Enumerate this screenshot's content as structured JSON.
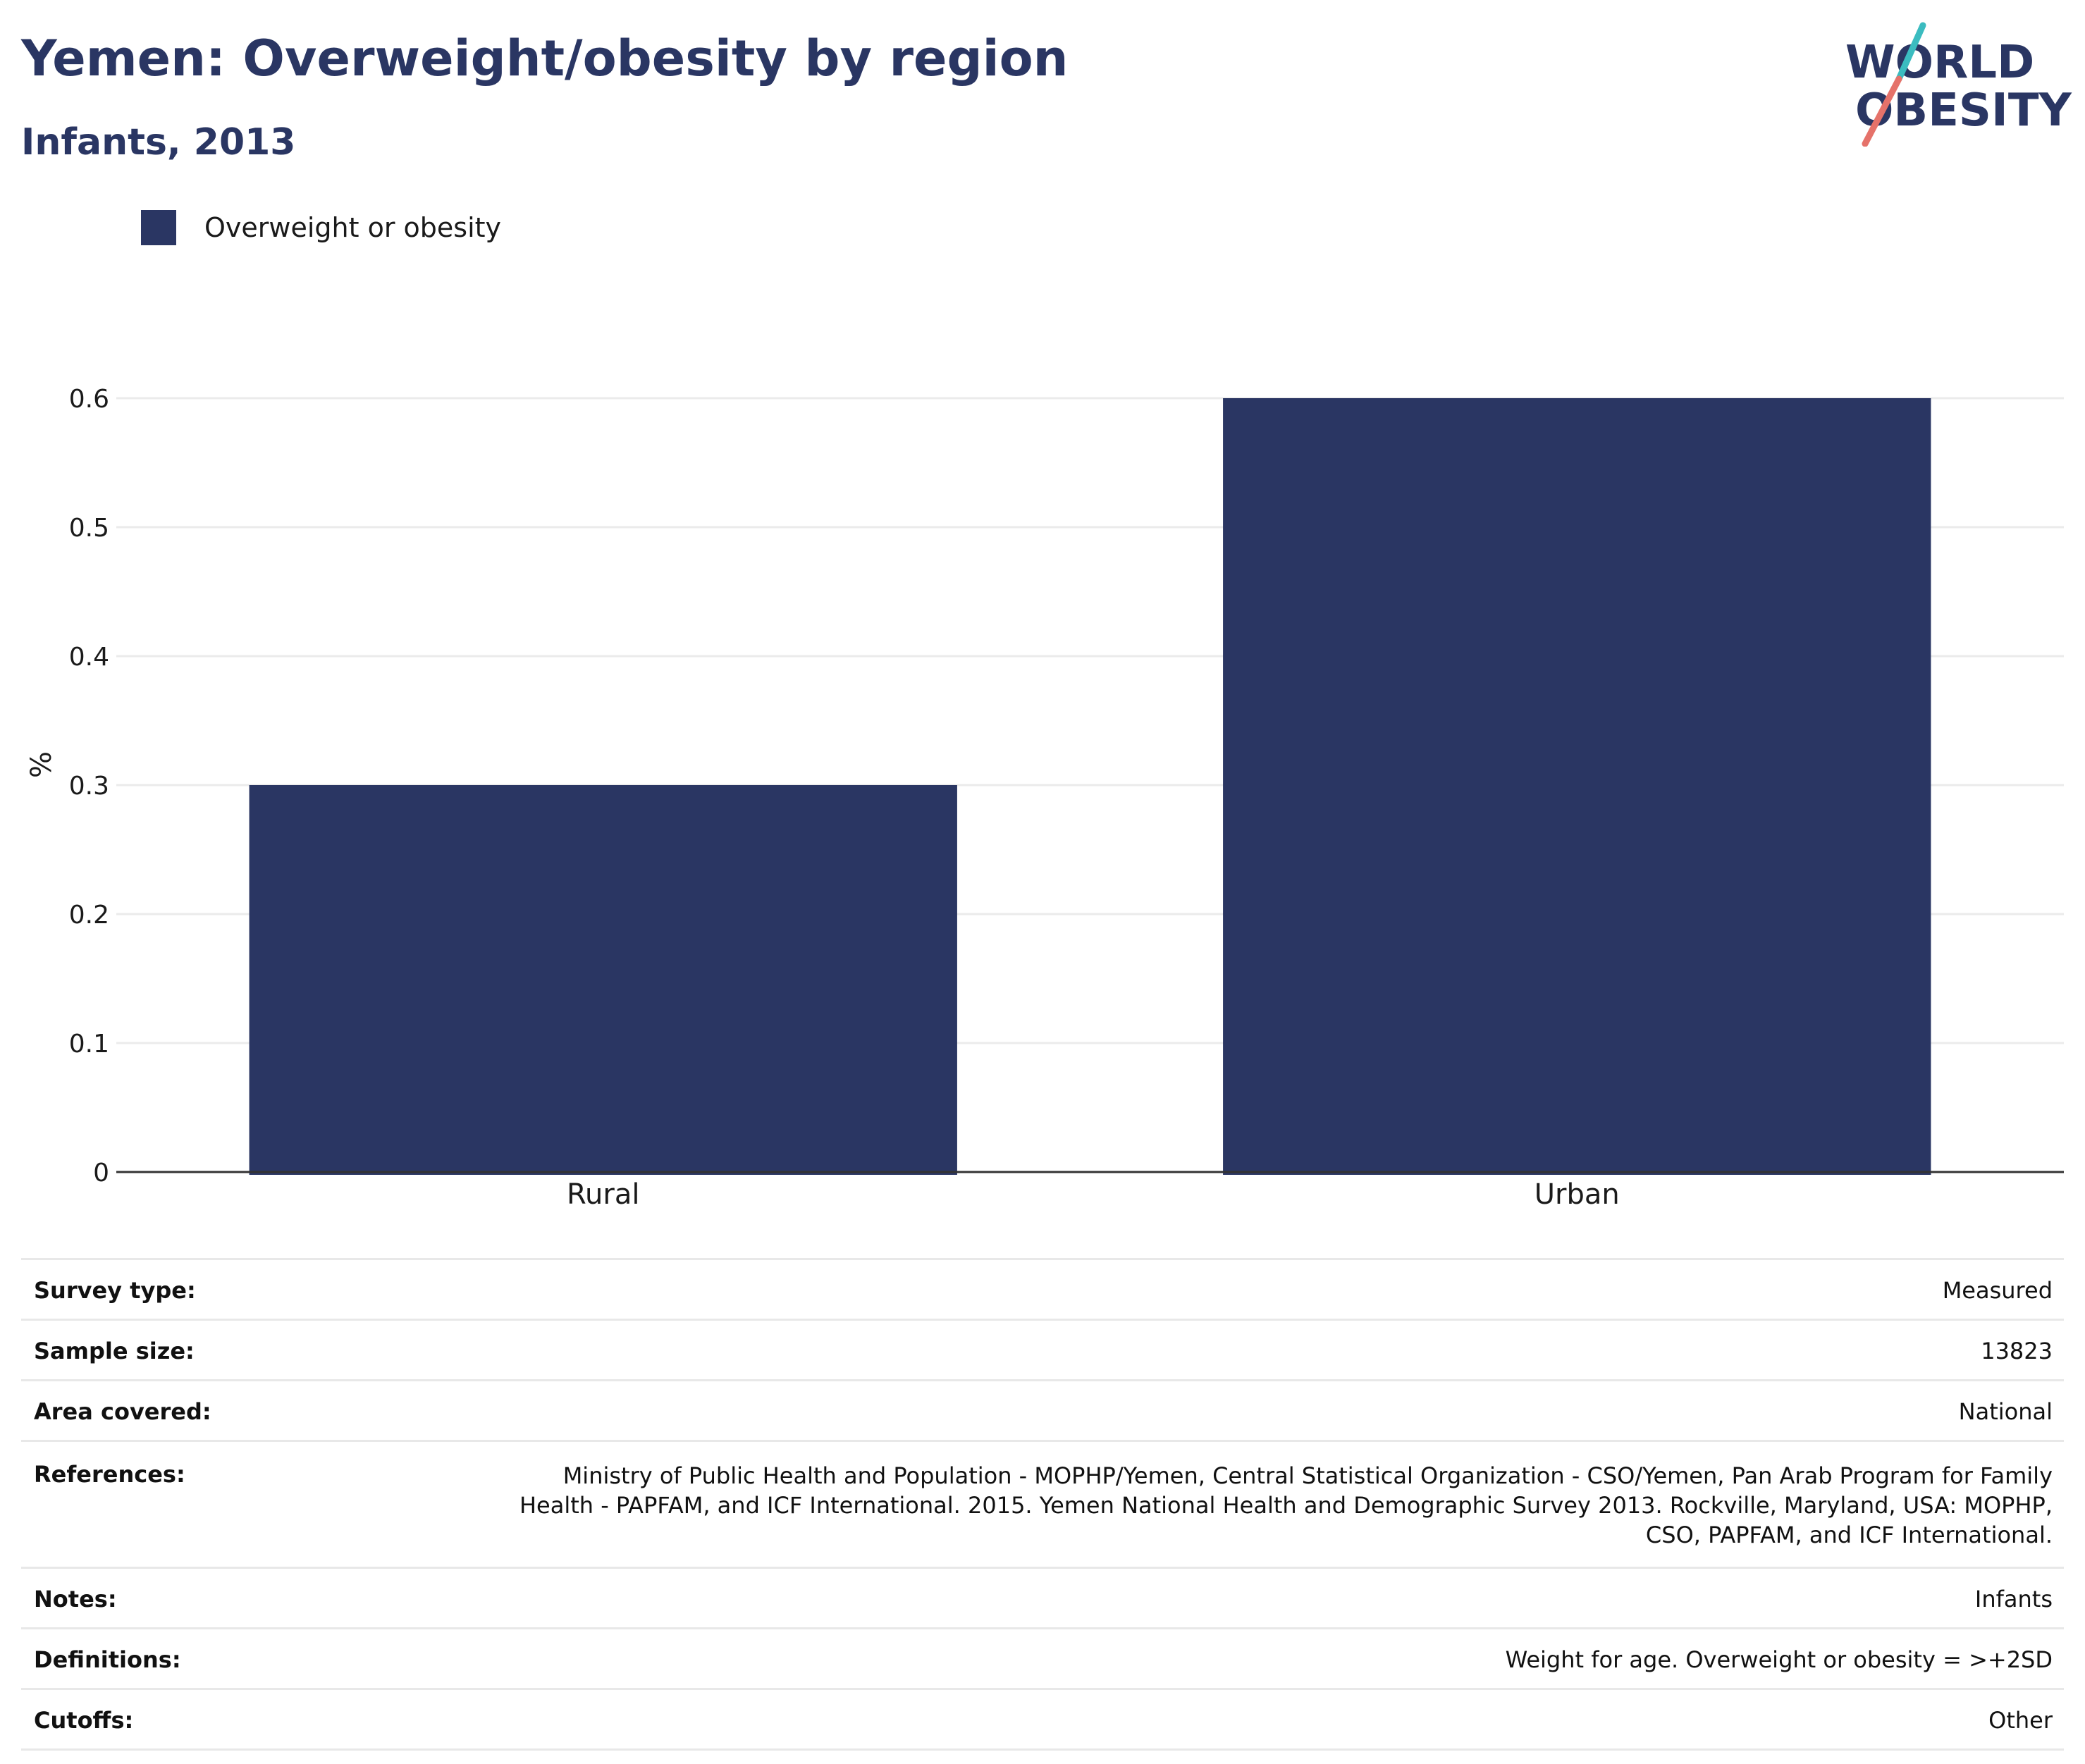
{
  "title": "Yemen: Overweight/obesity by region",
  "subtitle": "Infants, 2013",
  "logo": {
    "line1": "WORLD",
    "line2": "OBESITY"
  },
  "colors": {
    "bar": "#2a3663",
    "title": "#2a3663",
    "logo_teal": "#3bbcc0",
    "logo_coral": "#e5726a",
    "grid": "#ebebeb"
  },
  "legend": {
    "label": "Overweight or obesity"
  },
  "chart_data": {
    "type": "bar",
    "title": "Yemen: Overweight/obesity by region",
    "subtitle": "Infants, 2013",
    "categories": [
      "Rural",
      "Urban"
    ],
    "series": [
      {
        "name": "Overweight or obesity",
        "values": [
          0.3,
          0.6
        ]
      }
    ],
    "xlabel": "",
    "ylabel": "%",
    "ylim": [
      0,
      0.6
    ],
    "yticks": [
      "0",
      "0.1",
      "0.2",
      "0.3",
      "0.4",
      "0.5",
      "0.6"
    ],
    "grid": true,
    "legend_position": "top-left"
  },
  "meta": {
    "rows": [
      {
        "key": "Survey type:",
        "value": "Measured"
      },
      {
        "key": "Sample size:",
        "value": "13823"
      },
      {
        "key": "Area covered:",
        "value": "National"
      },
      {
        "key": "References:",
        "value": "Ministry of Public Health and Population - MOPHP/Yemen, Central Statistical Organization - CSO/Yemen, Pan Arab Program for Family Health - PAPFAM, and ICF International. 2015. Yemen National Health and Demographic Survey 2013. Rockville, Maryland, USA: MOPHP, CSO, PAPFAM, and ICF International."
      },
      {
        "key": "Notes:",
        "value": "Infants"
      },
      {
        "key": "Definitions:",
        "value": "Weight for age. Overweight or obesity = >+2SD"
      },
      {
        "key": "Cutoffs:",
        "value": "Other"
      }
    ]
  }
}
